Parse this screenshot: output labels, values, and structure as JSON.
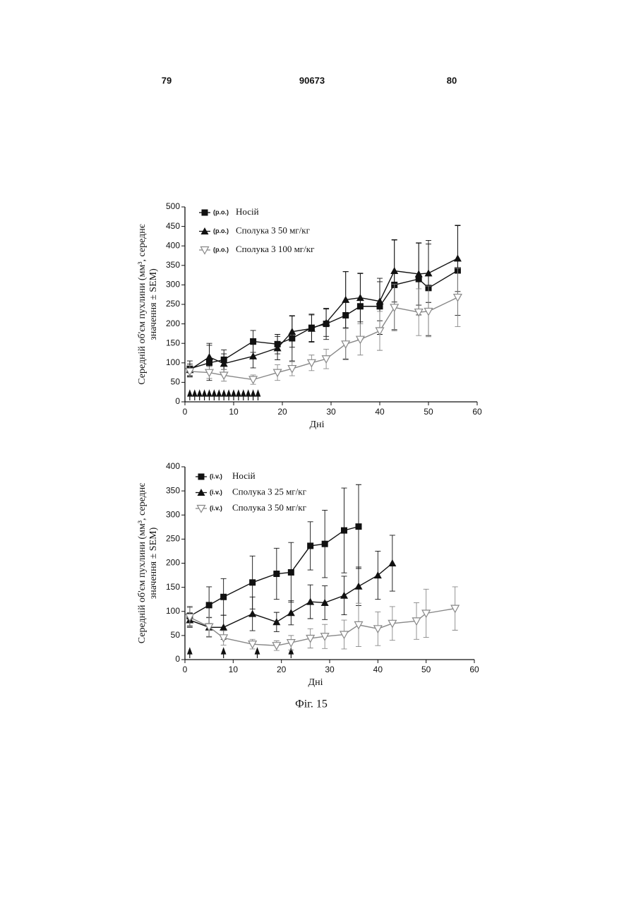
{
  "header": {
    "left": "79",
    "center": "90673",
    "right": "80"
  },
  "caption": "Фіг. 15",
  "chart_data": [
    {
      "type": "line",
      "xlabel": "Дні",
      "ylabel": [
        "Середній об'єм пухлини (мм³, середнє",
        "значення ± SEM)"
      ],
      "xlim": [
        0,
        60
      ],
      "xticks": [
        0,
        10,
        20,
        30,
        40,
        50,
        60
      ],
      "ylim": [
        0,
        500
      ],
      "yticks": [
        0,
        50,
        100,
        150,
        200,
        250,
        300,
        350,
        400,
        450,
        500
      ],
      "dose_days": [
        1,
        2,
        3,
        4,
        5,
        6,
        7,
        8,
        9,
        10,
        11,
        12,
        13,
        14,
        15
      ],
      "series": [
        {
          "route": "(p.o.)",
          "name": "Носій",
          "color": "#111111",
          "marker": "square",
          "x": [
            1,
            5,
            8,
            14,
            19,
            22,
            26,
            29,
            33,
            36,
            40,
            43,
            48,
            50,
            56
          ],
          "values": [
            85,
            100,
            108,
            155,
            148,
            163,
            190,
            200,
            222,
            245,
            245,
            300,
            315,
            292,
            337
          ],
          "errors": [
            20,
            45,
            25,
            28,
            25,
            58,
            35,
            40,
            112,
            85,
            72,
            115,
            92,
            122,
            115
          ]
        },
        {
          "route": "(p.o.)",
          "name": "Сполука 3 50 мг/кг",
          "color": "#111111",
          "marker": "triangle",
          "x": [
            1,
            5,
            8,
            14,
            19,
            22,
            26,
            29,
            33,
            36,
            40,
            43,
            48,
            50,
            56
          ],
          "values": [
            82,
            115,
            98,
            117,
            138,
            180,
            188,
            203,
            262,
            267,
            258,
            336,
            328,
            330,
            368
          ],
          "errors": [
            15,
            35,
            25,
            30,
            30,
            40,
            35,
            35,
            72,
            62,
            50,
            80,
            80,
            75,
            85
          ]
        },
        {
          "route": "(p.o.)",
          "name": "Сполука 3 100 мг/кг",
          "color": "#888888",
          "marker": "down",
          "x": [
            1,
            5,
            8,
            14,
            19,
            22,
            26,
            29,
            33,
            36,
            40,
            43,
            48,
            50,
            56
          ],
          "values": [
            78,
            75,
            68,
            57,
            75,
            85,
            100,
            110,
            148,
            160,
            182,
            242,
            230,
            232,
            268
          ],
          "errors": [
            15,
            15,
            15,
            12,
            20,
            18,
            20,
            25,
            40,
            40,
            50,
            60,
            60,
            65,
            75
          ]
        }
      ]
    },
    {
      "type": "line",
      "xlabel": "Дні",
      "ylabel": [
        "Середній об'єм пухлини (мм³, середнє",
        "значення ± SEM)"
      ],
      "xlim": [
        0,
        60
      ],
      "xticks": [
        0,
        10,
        20,
        30,
        40,
        50,
        60
      ],
      "ylim": [
        0,
        400
      ],
      "yticks": [
        0,
        50,
        100,
        150,
        200,
        250,
        300,
        350,
        400
      ],
      "dose_days": [
        1,
        8,
        15,
        22
      ],
      "series": [
        {
          "route": "(i.v.)",
          "name": "Носій",
          "color": "#111111",
          "marker": "square",
          "x": [
            1,
            5,
            8,
            14,
            19,
            22,
            26,
            29,
            33,
            36
          ],
          "values": [
            90,
            113,
            130,
            160,
            178,
            181,
            236,
            240,
            268,
            276
          ],
          "errors": [
            20,
            38,
            38,
            55,
            53,
            62,
            50,
            70,
            88,
            87
          ]
        },
        {
          "route": "(i.v.)",
          "name": "Сполука 3 25 мг/кг",
          "color": "#111111",
          "marker": "triangle",
          "x": [
            1,
            5,
            8,
            14,
            19,
            22,
            26,
            29,
            33,
            36,
            40,
            43
          ],
          "values": [
            82,
            67,
            67,
            95,
            78,
            97,
            120,
            118,
            133,
            152,
            175,
            200
          ],
          "errors": [
            15,
            20,
            25,
            35,
            20,
            25,
            35,
            35,
            40,
            40,
            50,
            58
          ]
        },
        {
          "route": "(i.v.)",
          "name": "Сполука 3 50 мг/кг",
          "color": "#888888",
          "marker": "down",
          "x": [
            1,
            5,
            8,
            14,
            19,
            22,
            26,
            29,
            33,
            36,
            40,
            43,
            48,
            50,
            56
          ],
          "values": [
            88,
            68,
            45,
            32,
            29,
            35,
            44,
            48,
            52,
            72,
            64,
            75,
            80,
            96,
            106
          ],
          "errors": [
            20,
            20,
            15,
            10,
            10,
            15,
            20,
            25,
            30,
            45,
            35,
            35,
            38,
            50,
            45
          ]
        }
      ]
    }
  ]
}
